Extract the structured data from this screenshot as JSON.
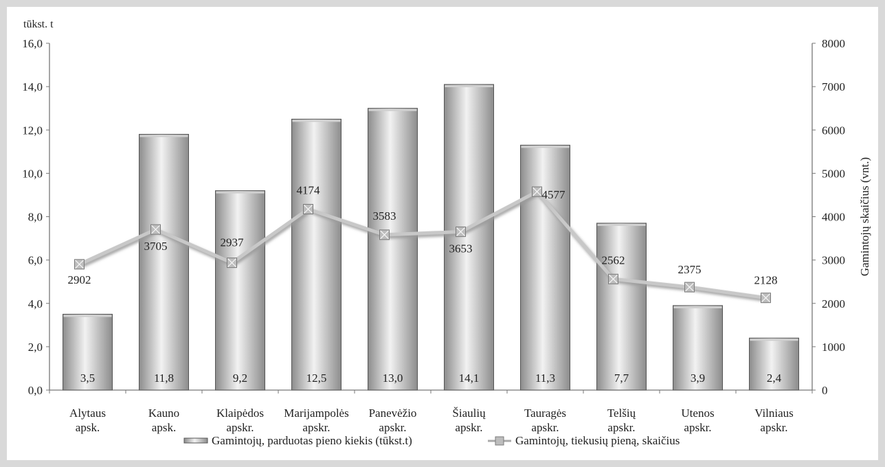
{
  "chart_data": {
    "type": "bar",
    "categories": [
      [
        "Alytaus",
        "apsk."
      ],
      [
        "Kauno",
        "apsk."
      ],
      [
        "Klaipėdos",
        "apskr."
      ],
      [
        "Marijampolės",
        "apskr."
      ],
      [
        "Panevėžio",
        "apskr."
      ],
      [
        "Šiaulių",
        "apskr."
      ],
      [
        "Tauragės",
        "apskr."
      ],
      [
        "Telšių",
        "apskr."
      ],
      [
        "Utenos",
        "apskr."
      ],
      [
        "Vilniaus",
        "apskr."
      ]
    ],
    "series": [
      {
        "name": "Gamintojų, parduotas pieno kiekis (tūkst.t)",
        "type": "bar",
        "axis": "left",
        "values": [
          3.5,
          11.8,
          9.2,
          12.5,
          13.0,
          14.1,
          11.3,
          7.7,
          3.9,
          2.4
        ],
        "labels": [
          "3,5",
          "11,8",
          "9,2",
          "12,5",
          "13,0",
          "14,1",
          "11,3",
          "7,7",
          "3,9",
          "2,4"
        ]
      },
      {
        "name": "Gamintojų, tiekusių pieną, skaičius",
        "type": "line",
        "axis": "right",
        "values": [
          2902,
          3705,
          2937,
          4174,
          3583,
          3653,
          4577,
          2562,
          2375,
          2128
        ],
        "labels": [
          "2902",
          "3705",
          "2937",
          "4174",
          "3583",
          "3653",
          "4577",
          "2562",
          "2375",
          "2128"
        ]
      }
    ],
    "y_left": {
      "unit": "tūkst. t",
      "range": [
        0,
        16
      ],
      "ticks": [
        "0,0",
        "2,0",
        "4,0",
        "6,0",
        "8,0",
        "10,0",
        "12,0",
        "14,0",
        "16,0"
      ]
    },
    "y_right": {
      "label": "Gamintojų skaičius (vnt.)",
      "range": [
        0,
        8000
      ],
      "ticks": [
        "0",
        "1000",
        "2000",
        "3000",
        "4000",
        "5000",
        "6000",
        "7000",
        "8000"
      ]
    },
    "grid": false,
    "legend": "bottom",
    "colors": {
      "bar_dark": "#8c8c8c",
      "bar_light": "#f2f2f2",
      "bar_edge": "#555555",
      "line": "#c8c8c8",
      "marker": "#bdbdbd"
    }
  }
}
